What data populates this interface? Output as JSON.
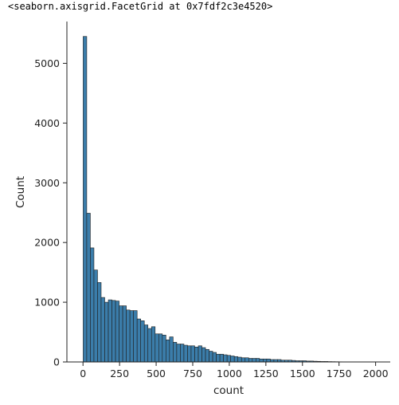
{
  "output_text": "<seaborn.axisgrid.FacetGrid at 0x7fdf2c3e4520>",
  "colors": {
    "bar_fill": "#3b7daa",
    "bar_edge": "#1f1f1f",
    "axis": "#222222"
  },
  "chart_data": {
    "type": "bar",
    "subtype": "histogram",
    "title": "",
    "xlabel": "count",
    "ylabel": "Count",
    "xlim": [
      -110,
      2100
    ],
    "ylim": [
      0,
      5700
    ],
    "grid": false,
    "x_ticks": [
      0,
      250,
      500,
      750,
      1000,
      1250,
      1500,
      1750,
      2000
    ],
    "y_ticks": [
      0,
      1000,
      2000,
      3000,
      4000,
      5000
    ],
    "bin_start": 1,
    "bin_width": 24.6,
    "values": [
      5450,
      2490,
      1910,
      1540,
      1330,
      1080,
      1000,
      1040,
      1030,
      1020,
      940,
      940,
      870,
      860,
      860,
      720,
      690,
      620,
      560,
      590,
      470,
      470,
      450,
      370,
      420,
      330,
      300,
      300,
      280,
      270,
      270,
      250,
      270,
      240,
      210,
      180,
      160,
      130,
      130,
      120,
      110,
      100,
      90,
      80,
      70,
      70,
      60,
      60,
      60,
      50,
      50,
      50,
      40,
      40,
      40,
      30,
      30,
      30,
      25,
      20,
      20,
      20,
      15,
      15,
      12,
      10,
      8,
      8,
      6,
      5,
      4,
      3,
      2,
      2,
      2,
      1,
      1,
      1,
      1
    ]
  }
}
